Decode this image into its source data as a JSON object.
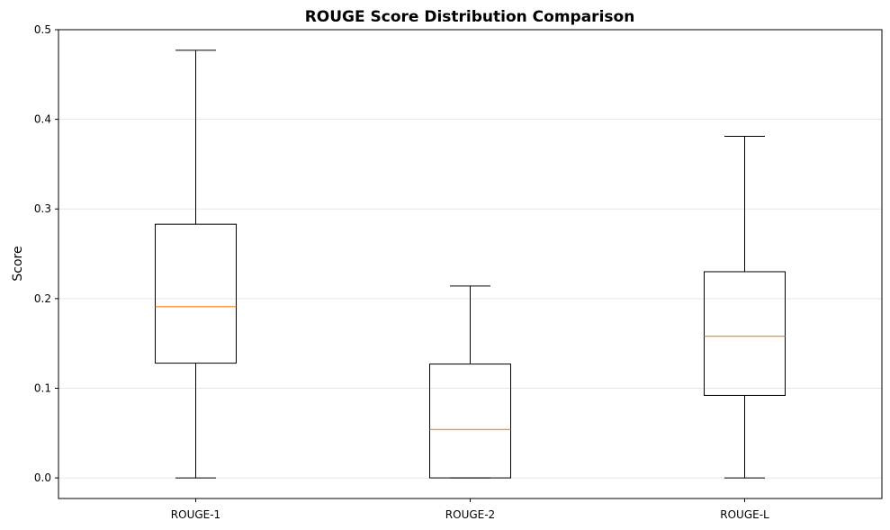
{
  "chart_data": {
    "type": "box",
    "title": "ROUGE Score Distribution Comparison",
    "xlabel": "",
    "ylabel": "Score",
    "ylim": [
      -0.023,
      0.5
    ],
    "yticks": [
      0.0,
      0.1,
      0.2,
      0.3,
      0.4,
      0.5
    ],
    "ytick_labels": [
      "0.0",
      "0.1",
      "0.2",
      "0.3",
      "0.4",
      "0.5"
    ],
    "grid": "y",
    "categories": [
      "ROUGE-1",
      "ROUGE-2",
      "ROUGE-L"
    ],
    "boxes": [
      {
        "whisker_low": 0.0,
        "q1": 0.128,
        "median": 0.191,
        "q3": 0.283,
        "whisker_high": 0.477
      },
      {
        "whisker_low": 0.0,
        "q1": 0.0,
        "median": 0.054,
        "q3": 0.127,
        "whisker_high": 0.214
      },
      {
        "whisker_low": 0.0,
        "q1": 0.092,
        "median": 0.158,
        "q3": 0.23,
        "whisker_high": 0.381
      }
    ],
    "colors": {
      "box": "#000000",
      "median": "#ff7f0e",
      "grid": "#e6e6e6"
    }
  }
}
